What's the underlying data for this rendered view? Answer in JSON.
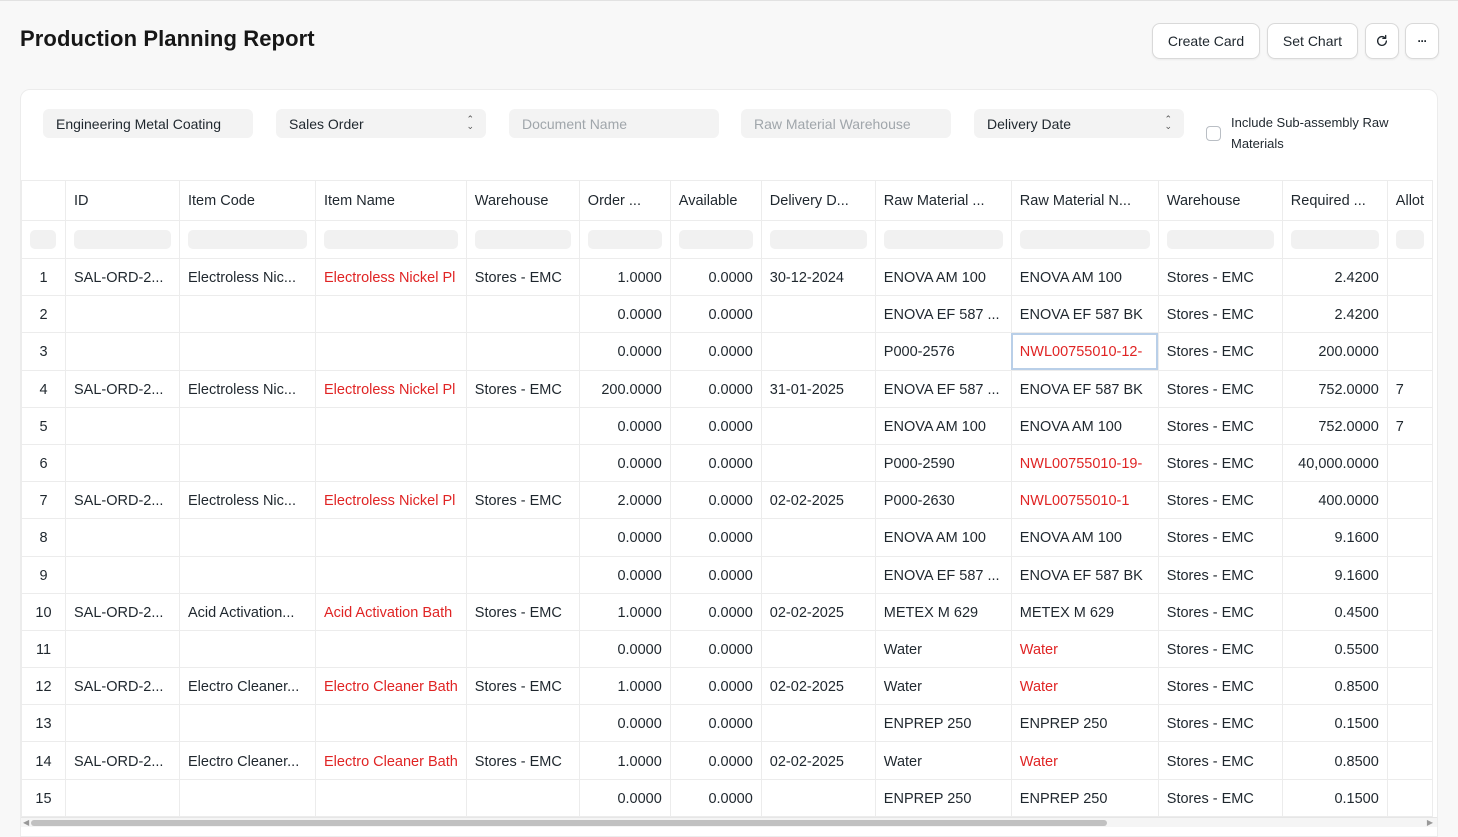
{
  "header": {
    "title": "Production Planning Report",
    "create_card": "Create Card",
    "set_chart": "Set Chart",
    "refresh_icon": "refresh-icon",
    "more_icon": "ellipsis-icon",
    "more_glyph": "···"
  },
  "filters": {
    "company": "Engineering Metal Coating",
    "based_on": "Sales Order",
    "document_name_placeholder": "Document Name",
    "raw_material_warehouse_placeholder": "Raw Material Warehouse",
    "order_by": "Delivery Date",
    "include_subassembly_label": "Include Sub-assembly Raw Materials",
    "include_subassembly_checked": false
  },
  "columns": [
    "ID",
    "Item Code",
    "Item Name",
    "Warehouse",
    "Order ...",
    "Available",
    "Delivery D...",
    "Raw Material ...",
    "Raw Material N...",
    "Warehouse",
    "Required ...",
    "Allot"
  ],
  "rows": [
    {
      "idx": "1",
      "id": "SAL-ORD-2...",
      "item_code": "Electroless Nic...",
      "item_name": "Electroless Nickel Pl",
      "warehouse": "Stores - EMC",
      "order_qty": "1.0000",
      "available": "0.0000",
      "delivery": "30-12-2024",
      "rm_code": "ENOVA AM 100",
      "rm_name": "ENOVA AM 100",
      "rm_red": false,
      "rm_wh": "Stores - EMC",
      "required": "2.4200",
      "allot": ""
    },
    {
      "idx": "2",
      "id": "",
      "item_code": "",
      "item_name": "",
      "warehouse": "",
      "order_qty": "0.0000",
      "available": "0.0000",
      "delivery": "",
      "rm_code": "ENOVA EF 587 ...",
      "rm_name": "ENOVA EF 587 BK",
      "rm_red": false,
      "rm_wh": "Stores - EMC",
      "required": "2.4200",
      "allot": ""
    },
    {
      "idx": "3",
      "id": "",
      "item_code": "",
      "item_name": "",
      "warehouse": "",
      "order_qty": "0.0000",
      "available": "0.0000",
      "delivery": "",
      "rm_code": "P000-2576",
      "rm_name": "NWL00755010-12-",
      "rm_red": true,
      "rm_wh": "Stores - EMC",
      "required": "200.0000",
      "allot": ""
    },
    {
      "idx": "4",
      "id": "SAL-ORD-2...",
      "item_code": "Electroless Nic...",
      "item_name": "Electroless Nickel Pl",
      "warehouse": "Stores - EMC",
      "order_qty": "200.0000",
      "available": "0.0000",
      "delivery": "31-01-2025",
      "rm_code": "ENOVA EF 587 ...",
      "rm_name": "ENOVA EF 587 BK",
      "rm_red": false,
      "rm_wh": "Stores - EMC",
      "required": "752.0000",
      "allot": "7"
    },
    {
      "idx": "5",
      "id": "",
      "item_code": "",
      "item_name": "",
      "warehouse": "",
      "order_qty": "0.0000",
      "available": "0.0000",
      "delivery": "",
      "rm_code": "ENOVA AM 100",
      "rm_name": "ENOVA AM 100",
      "rm_red": false,
      "rm_wh": "Stores - EMC",
      "required": "752.0000",
      "allot": "7"
    },
    {
      "idx": "6",
      "id": "",
      "item_code": "",
      "item_name": "",
      "warehouse": "",
      "order_qty": "0.0000",
      "available": "0.0000",
      "delivery": "",
      "rm_code": "P000-2590",
      "rm_name": "NWL00755010-19-",
      "rm_red": true,
      "rm_wh": "Stores - EMC",
      "required": "40,000.0000",
      "allot": ""
    },
    {
      "idx": "7",
      "id": "SAL-ORD-2...",
      "item_code": "Electroless Nic...",
      "item_name": "Electroless Nickel Pl",
      "warehouse": "Stores - EMC",
      "order_qty": "2.0000",
      "available": "0.0000",
      "delivery": "02-02-2025",
      "rm_code": "P000-2630",
      "rm_name": "NWL00755010-1",
      "rm_red": true,
      "rm_wh": "Stores - EMC",
      "required": "400.0000",
      "allot": ""
    },
    {
      "idx": "8",
      "id": "",
      "item_code": "",
      "item_name": "",
      "warehouse": "",
      "order_qty": "0.0000",
      "available": "0.0000",
      "delivery": "",
      "rm_code": "ENOVA AM 100",
      "rm_name": "ENOVA AM 100",
      "rm_red": false,
      "rm_wh": "Stores - EMC",
      "required": "9.1600",
      "allot": ""
    },
    {
      "idx": "9",
      "id": "",
      "item_code": "",
      "item_name": "",
      "warehouse": "",
      "order_qty": "0.0000",
      "available": "0.0000",
      "delivery": "",
      "rm_code": "ENOVA EF 587 ...",
      "rm_name": "ENOVA EF 587 BK",
      "rm_red": false,
      "rm_wh": "Stores - EMC",
      "required": "9.1600",
      "allot": ""
    },
    {
      "idx": "10",
      "id": "SAL-ORD-2...",
      "item_code": "Acid Activation...",
      "item_name": "Acid Activation Bath",
      "warehouse": "Stores - EMC",
      "order_qty": "1.0000",
      "available": "0.0000",
      "delivery": "02-02-2025",
      "rm_code": "METEX M 629",
      "rm_name": "METEX M 629",
      "rm_red": false,
      "rm_wh": "Stores - EMC",
      "required": "0.4500",
      "allot": ""
    },
    {
      "idx": "11",
      "id": "",
      "item_code": "",
      "item_name": "",
      "warehouse": "",
      "order_qty": "0.0000",
      "available": "0.0000",
      "delivery": "",
      "rm_code": "Water",
      "rm_name": "Water",
      "rm_red": true,
      "rm_wh": "Stores - EMC",
      "required": "0.5500",
      "allot": ""
    },
    {
      "idx": "12",
      "id": "SAL-ORD-2...",
      "item_code": "Electro Cleaner...",
      "item_name": "Electro Cleaner Bath",
      "warehouse": "Stores - EMC",
      "order_qty": "1.0000",
      "available": "0.0000",
      "delivery": "02-02-2025",
      "rm_code": "Water",
      "rm_name": "Water",
      "rm_red": true,
      "rm_wh": "Stores - EMC",
      "required": "0.8500",
      "allot": ""
    },
    {
      "idx": "13",
      "id": "",
      "item_code": "",
      "item_name": "",
      "warehouse": "",
      "order_qty": "0.0000",
      "available": "0.0000",
      "delivery": "",
      "rm_code": "ENPREP 250",
      "rm_name": "ENPREP 250",
      "rm_red": false,
      "rm_wh": "Stores - EMC",
      "required": "0.1500",
      "allot": ""
    },
    {
      "idx": "14",
      "id": "SAL-ORD-2...",
      "item_code": "Electro Cleaner...",
      "item_name": "Electro Cleaner Bath",
      "warehouse": "Stores - EMC",
      "order_qty": "1.0000",
      "available": "0.0000",
      "delivery": "02-02-2025",
      "rm_code": "Water",
      "rm_name": "Water",
      "rm_red": true,
      "rm_wh": "Stores - EMC",
      "required": "0.8500",
      "allot": ""
    },
    {
      "idx": "15",
      "id": "",
      "item_code": "",
      "item_name": "",
      "warehouse": "",
      "order_qty": "0.0000",
      "available": "0.0000",
      "delivery": "",
      "rm_code": "ENPREP 250",
      "rm_name": "ENPREP 250",
      "rm_red": false,
      "rm_wh": "Stores - EMC",
      "required": "0.1500",
      "allot": ""
    }
  ],
  "selected_cell": {
    "row": "3",
    "column": "Raw Material N..."
  },
  "colors": {
    "link_red": "#e02424",
    "border": "#ececec",
    "selection": "#b9cfe8"
  }
}
